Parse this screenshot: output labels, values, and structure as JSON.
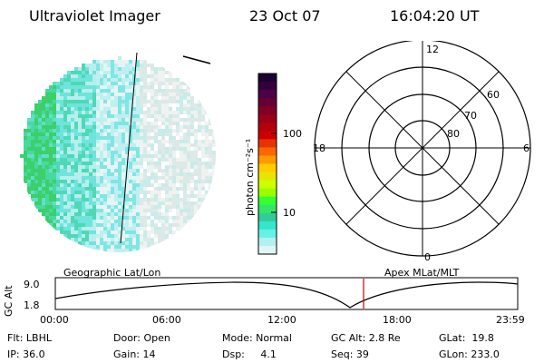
{
  "header": {
    "title": "Ultraviolet Imager",
    "date": "23 Oct 07",
    "time": "16:04:20 UT"
  },
  "colorbar": {
    "label": "photon cm⁻²s⁻¹",
    "ticks": [
      "100",
      "10"
    ],
    "colors_top_to_bottom": [
      "#1a0033",
      "#33003d",
      "#4d0047",
      "#660033",
      "#800026",
      "#99001a",
      "#b3000d",
      "#cc0000",
      "#e63300",
      "#ff6600",
      "#ff9900",
      "#ffcc00",
      "#e6e600",
      "#ccff00",
      "#99ff00",
      "#33ff33",
      "#33e666",
      "#33cc99",
      "#33e6cc",
      "#66f0e6",
      "#b3f0f0",
      "#e0f5f5"
    ]
  },
  "polar": {
    "mlt_labels": {
      "top": "12",
      "left": "18",
      "right": "6",
      "bottom": "0"
    },
    "lat_labels": [
      "60",
      "70",
      "80"
    ]
  },
  "track": {
    "left_label": "Geographic Lat/Lon",
    "right_label": "Apex MLat/MLT",
    "y_axis_label": "GC Alt",
    "y_ticks": [
      "9.0",
      "1.8"
    ],
    "x_ticks": [
      "00:00",
      "06:00",
      "12:00",
      "18:00",
      "23:59"
    ],
    "marker_color": "#cc0000"
  },
  "footer": {
    "flt": "Flt: LBHL",
    "ip": "IP: 36.0",
    "door": "Door: Open",
    "gain": "Gain: 14",
    "mode": "Mode: Normal",
    "dsp": "Dsp:     4.1",
    "gcalt": "GC Alt: 2.8 Re",
    "seq": "Seq: 39",
    "glat": "GLat:  19.8",
    "glon": "GLon: 233.0"
  }
}
